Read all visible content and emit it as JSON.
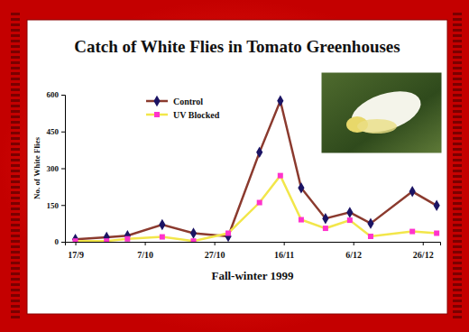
{
  "chart_data": {
    "type": "line",
    "title": "Catch of White Flies in Tomato Greenhouses",
    "x_label": "Fall-winter 1999",
    "y_label": "No. of White Flies",
    "x": [
      "1999-09-17",
      "1999-09-26",
      "1999-10-02",
      "1999-10-12",
      "1999-10-21",
      "1999-10-31",
      "1999-11-09",
      "1999-11-15",
      "1999-11-21",
      "1999-11-28",
      "1999-12-05",
      "1999-12-11",
      "1999-12-23",
      "1999-12-30"
    ],
    "xlim": [
      "1999-09-14",
      "1999-12-31"
    ],
    "xticks": [
      {
        "value": "1999-09-17",
        "label": "17/9"
      },
      {
        "value": "1999-10-07",
        "label": "7/10"
      },
      {
        "value": "1999-10-27",
        "label": "27/10"
      },
      {
        "value": "1999-11-16",
        "label": "16/11"
      },
      {
        "value": "1999-12-06",
        "label": "6/12"
      },
      {
        "value": "1999-12-26",
        "label": "26/12"
      }
    ],
    "ylim": [
      0,
      600
    ],
    "yticks": [
      0,
      150,
      300,
      450,
      600
    ],
    "grid": false,
    "legend": "upper left",
    "series": [
      {
        "name": "Control",
        "color": "#8b3a2e",
        "marker": "diamond",
        "values": [
          10,
          18,
          25,
          70,
          35,
          22,
          365,
          575,
          220,
          95,
          120,
          75,
          205,
          148
        ]
      },
      {
        "name": "UV Blocked",
        "color": "#f2e64a",
        "marker": "square",
        "values": [
          3,
          3,
          12,
          20,
          3,
          35,
          160,
          270,
          90,
          55,
          88,
          22,
          42,
          35
        ]
      }
    ]
  }
}
